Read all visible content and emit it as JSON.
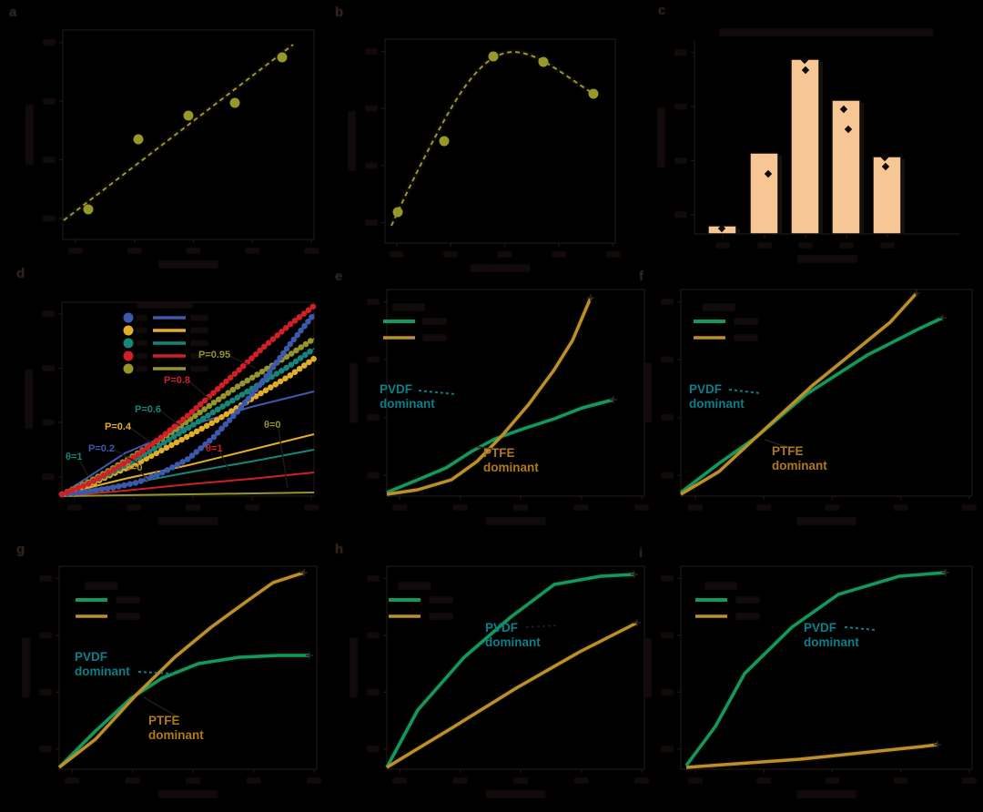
{
  "note": "Nine-panel scientific figure on a transparent/black background. All axis titles, tick labels, legend captions and panel titles are rendered in black ink and are not legible against the dark background (they appear only as faint smudges). Only colored plot elements, colored annotations and panel letters are visible.",
  "figure": {
    "background": "#000000",
    "panel_letters": [
      "a",
      "b",
      "c",
      "d",
      "e",
      "f",
      "g",
      "h",
      "i"
    ]
  },
  "colors": {
    "olive": "#97972a",
    "bar_fill": "#f6c795",
    "bar_edge": "#0f0b08",
    "blue": "#3d59ad",
    "yellow": "#e3ad28",
    "teal": "#15857a",
    "red": "#d01f27",
    "green": "#12995c",
    "gold": "#bd8f28",
    "teal_text": "#0d7f88",
    "gold_text": "#b0791b",
    "frame": "#1e1813",
    "smudge": "#171110"
  },
  "region_labels": {
    "e_teal": [
      "PVDF",
      "dominant"
    ],
    "e_gold": [
      "PTFE",
      "dominant"
    ],
    "f_teal": [
      "PVDF",
      "dominant"
    ],
    "f_gold": [
      "PTFE",
      "dominant"
    ],
    "g_teal": [
      "PVDF",
      "dominant"
    ],
    "g_gold": [
      "PTFE",
      "dominant"
    ],
    "h_teal": [
      "PVDF",
      "dominant"
    ],
    "i_teal": [
      "PVDF",
      "dominant"
    ]
  },
  "panel_d_annotations": [
    {
      "text": "P=0.2",
      "color": "#3d59ad"
    },
    {
      "text": "P=0.4",
      "color": "#e3ad28"
    },
    {
      "text": "P=0.6",
      "color": "#15857a"
    },
    {
      "text": "P=0.8",
      "color": "#d01f27"
    },
    {
      "text": "P=0.95",
      "color": "#95952a"
    },
    {
      "text": "θ=1",
      "color": "#15857a"
    },
    {
      "text": "θ=0",
      "color": "#bd8f28"
    },
    {
      "text": "θ=1",
      "color": "#d01f27"
    },
    {
      "text": "θ=0",
      "color": "#95952a"
    }
  ],
  "chart_data": [
    {
      "panel": "a",
      "type": "scatter",
      "style": "dashed olive trend line with circular markers, axis text illegible",
      "color": "#97972a",
      "trend_line": {
        "x": [
          0,
          100
        ],
        "y": [
          1,
          98
        ]
      },
      "points": {
        "x": [
          11,
          33,
          55,
          75,
          96
        ],
        "y": [
          8,
          47,
          60,
          69,
          94
        ]
      },
      "units": "normalized 0-100 of plot box"
    },
    {
      "panel": "b",
      "type": "line",
      "style": "dashed olive curve with circular markers, rises then falls",
      "color": "#97972a",
      "x": [
        2,
        9,
        17,
        23,
        30,
        37,
        44,
        52,
        60,
        68,
        76,
        83
      ],
      "y": [
        5,
        24,
        42,
        57,
        71,
        85,
        93,
        95,
        92,
        88,
        81,
        73
      ],
      "markers": {
        "x": [
          5,
          24,
          44,
          62,
          83
        ],
        "y": [
          13,
          49,
          93,
          88,
          72
        ]
      },
      "units": "normalized 0-100 of plot box"
    },
    {
      "panel": "c",
      "type": "bar",
      "n_bars": 5,
      "values": [
        4,
        42,
        90,
        69,
        40
      ],
      "bar_color": "#f6c795",
      "bar_edge": "#0f0b08",
      "diamond_markers_y_per_bar": [
        [
          3
        ],
        [
          31
        ],
        [
          86,
          81
        ],
        [
          65,
          54
        ],
        [
          38,
          34
        ]
      ],
      "units": "normalized 0-100 of axis height, category tick labels illegible"
    },
    {
      "panel": "d",
      "type": "line",
      "description": "five dotted marker curves (steep, accelerating) and five thin solid lines (shallow) fanning out from the origin; legend with 5 circle swatches and 5 line swatches (captions illegible)",
      "x": [
        0,
        10,
        20,
        30,
        40,
        50,
        60,
        70,
        80,
        90,
        100
      ],
      "marker_series": [
        {
          "name": "blue",
          "color": "#3d59ad",
          "y": [
            1,
            2,
            4,
            7,
            12,
            19,
            30,
            44,
            60,
            78,
            94
          ]
        },
        {
          "name": "yellow",
          "color": "#e3ad28",
          "y": [
            1,
            5,
            11,
            17,
            24,
            31,
            38,
            46,
            54,
            62,
            71
          ]
        },
        {
          "name": "teal",
          "color": "#15857a",
          "y": [
            1,
            6,
            12,
            19,
            27,
            35,
            43,
            51,
            59,
            67,
            76
          ]
        },
        {
          "name": "red",
          "color": "#d01f27",
          "y": [
            1,
            6,
            13,
            21,
            31,
            42,
            53,
            65,
            77,
            88,
            98
          ]
        },
        {
          "name": "olive",
          "color": "#95952a",
          "y": [
            1,
            7,
            14,
            22,
            30,
            39,
            48,
            57,
            65,
            73,
            81
          ]
        }
      ],
      "line_series": [
        {
          "name": "blue-thin",
          "color": "#3d59ad",
          "x": [
            0,
            25,
            50,
            75,
            100
          ],
          "y": [
            1,
            21,
            35,
            46,
            54
          ]
        },
        {
          "name": "yellow-thin",
          "color": "#e3ad28",
          "x": [
            0,
            25,
            50,
            75,
            100
          ],
          "y": [
            1,
            8,
            16,
            24,
            32
          ]
        },
        {
          "name": "teal-thin",
          "color": "#15857a",
          "x": [
            0,
            25,
            50,
            75,
            100
          ],
          "y": [
            1,
            6,
            12,
            18,
            24
          ]
        },
        {
          "name": "red-thin",
          "color": "#d01f27",
          "x": [
            0,
            25,
            50,
            75,
            100
          ],
          "y": [
            0,
            3,
            6,
            9,
            12
          ]
        },
        {
          "name": "olive-thin",
          "color": "#95952a",
          "x": [
            0,
            50,
            100
          ],
          "y": [
            0,
            1,
            2
          ]
        }
      ],
      "annotations": [
        "P=0.2",
        "P=0.4",
        "P=0.6",
        "P=0.8",
        "P=0.95",
        "θ=1",
        "θ=0",
        "θ=1",
        "θ=0"
      ],
      "legend": {
        "rows": 5,
        "columns": [
          "circle markers",
          "lines"
        ],
        "colors": [
          "#3d59ad",
          "#e3ad28",
          "#15857a",
          "#d01f27",
          "#95952a"
        ],
        "captions": "illegible"
      }
    },
    {
      "panel": "e",
      "type": "line",
      "series": [
        {
          "name": "green",
          "color": "#12995c",
          "x": [
            0,
            12,
            23,
            33,
            42,
            53,
            65,
            76,
            88
          ],
          "y": [
            2,
            8,
            14,
            22,
            28,
            33,
            38,
            43,
            47
          ]
        },
        {
          "name": "gold",
          "color": "#bd8f28",
          "x": [
            0,
            12,
            25,
            35,
            45,
            55,
            65,
            72,
            79
          ],
          "y": [
            1,
            3,
            8,
            17,
            30,
            45,
            62,
            76,
            97
          ]
        }
      ],
      "region_labels": [
        "PVDF dominant",
        "PTFE dominant"
      ],
      "crossing_x": 33
    },
    {
      "panel": "f",
      "type": "line",
      "series": [
        {
          "name": "green",
          "color": "#12995c",
          "x": [
            0,
            13,
            26,
            43,
            64,
            82,
            90
          ],
          "y": [
            2,
            16,
            29,
            50,
            69,
            82,
            87
          ]
        },
        {
          "name": "gold",
          "color": "#bd8f28",
          "x": [
            0,
            13,
            26,
            45,
            60,
            72,
            81
          ],
          "y": [
            1,
            12,
            29,
            54,
            71,
            85,
            99
          ]
        }
      ],
      "region_labels": [
        "PVDF dominant",
        "PTFE dominant"
      ],
      "crossing_x": 26
    },
    {
      "panel": "g",
      "type": "line",
      "series": [
        {
          "name": "green",
          "color": "#12995c",
          "x": [
            0,
            14,
            28,
            40,
            54,
            70,
            85,
            97
          ],
          "y": [
            1,
            19,
            35,
            45,
            52,
            55,
            56,
            56
          ]
        },
        {
          "name": "gold",
          "color": "#bd8f28",
          "x": [
            0,
            14,
            30,
            45,
            59,
            72,
            83,
            95
          ],
          "y": [
            1,
            15,
            37,
            55,
            70,
            82,
            92,
            97
          ]
        }
      ],
      "region_labels": [
        "PVDF dominant",
        "PTFE dominant"
      ],
      "crossing_x": 30
    },
    {
      "panel": "h",
      "type": "line",
      "series": [
        {
          "name": "green",
          "color": "#12995c",
          "x": [
            0,
            12,
            30,
            48,
            65,
            83,
            96
          ],
          "y": [
            1,
            29,
            55,
            75,
            91,
            95,
            96
          ]
        },
        {
          "name": "gold",
          "color": "#bd8f28",
          "x": [
            0,
            25,
            50,
            75,
            97
          ],
          "y": [
            1,
            20,
            40,
            58,
            72
          ]
        }
      ],
      "region_labels": [
        "PVDF dominant"
      ],
      "crossing_x": null
    },
    {
      "panel": "i",
      "type": "line",
      "series": [
        {
          "name": "green",
          "color": "#12995c",
          "x": [
            2,
            12,
            22,
            38,
            54,
            75,
            91
          ],
          "y": [
            2,
            21,
            47,
            70,
            87,
            96,
            97
          ]
        },
        {
          "name": "gold",
          "color": "#bd8f28",
          "x": [
            2,
            41,
            83,
            88
          ],
          "y": [
            1,
            5,
            11,
            12
          ]
        }
      ],
      "region_labels": [
        "PVDF dominant"
      ],
      "crossing_x": null
    }
  ]
}
